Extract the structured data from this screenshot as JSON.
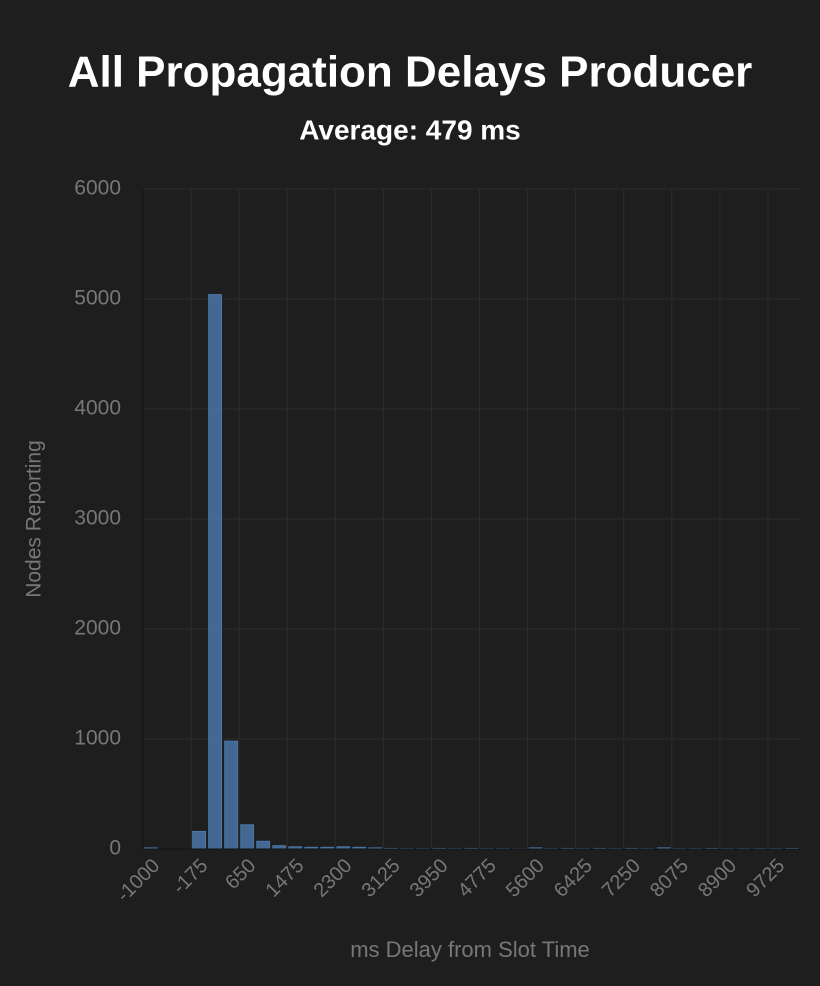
{
  "chart_data": {
    "type": "bar",
    "title": "All Propagation Delays Producer",
    "subtitle": "Average: 479 ms",
    "x_label": "ms Delay from Slot Time",
    "y_label": "Nodes Reporting",
    "categories": [
      -1000,
      null,
      null,
      -175,
      null,
      null,
      650,
      null,
      null,
      1475,
      null,
      null,
      2300,
      null,
      null,
      3125,
      null,
      null,
      3950,
      null,
      null,
      4775,
      null,
      null,
      5600,
      null,
      null,
      6425,
      null,
      null,
      7250,
      null,
      null,
      8075,
      null,
      null,
      8900,
      null,
      null,
      9725,
      null
    ],
    "values": [
      10,
      0,
      0,
      160,
      5040,
      980,
      220,
      70,
      30,
      20,
      15,
      15,
      20,
      15,
      10,
      5,
      3,
      3,
      5,
      3,
      5,
      3,
      3,
      2,
      10,
      3,
      5,
      3,
      5,
      3,
      5,
      3,
      10,
      3,
      3,
      5,
      3,
      3,
      3,
      3,
      5
    ],
    "color": "#4a77a8",
    "ylim": [
      0,
      6000
    ],
    "yticks": [
      0,
      1000,
      2000,
      3000,
      4000,
      5000,
      6000
    ],
    "grid": true
  }
}
